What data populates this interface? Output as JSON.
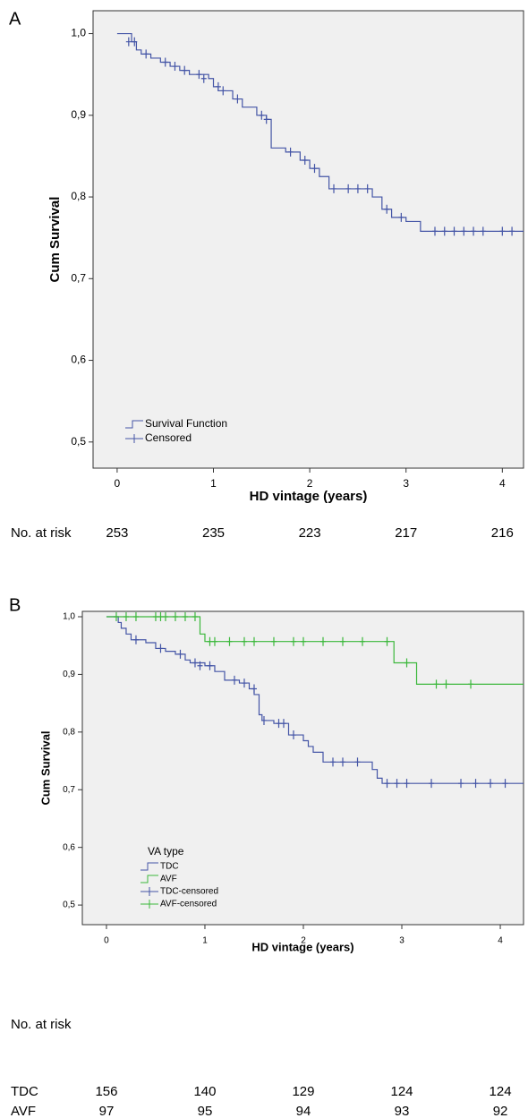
{
  "chart_data": [
    {
      "type": "survival",
      "panel_label": "A",
      "y_label": "Cum Survival",
      "x_label": "HD vintage (years)",
      "xlim": [
        -0.25,
        4.22
      ],
      "ylim": [
        0.468,
        1.028
      ],
      "xticks": [
        0,
        1,
        2,
        3,
        4
      ],
      "yticks": [
        {
          "value": 0.5,
          "label": "0,5"
        },
        {
          "value": 0.6,
          "label": "0,6"
        },
        {
          "value": 0.7,
          "label": "0,7"
        },
        {
          "value": 0.8,
          "label": "0,8"
        },
        {
          "value": 0.9,
          "label": "0,9"
        },
        {
          "value": 1.0,
          "label": "1,0"
        }
      ],
      "series": [
        {
          "name": "Survival Function",
          "color": "#4455a6",
          "x": [
            0,
            0.15,
            0.2,
            0.25,
            0.35,
            0.45,
            0.55,
            0.65,
            0.75,
            0.95,
            1.0,
            1.05,
            1.2,
            1.3,
            1.45,
            1.55,
            1.6,
            1.75,
            1.9,
            2.0,
            2.1,
            2.2,
            2.65,
            2.75,
            2.85,
            3.0,
            3.15
          ],
          "values": [
            1.0,
            0.99,
            0.98,
            0.975,
            0.97,
            0.965,
            0.96,
            0.955,
            0.95,
            0.945,
            0.935,
            0.93,
            0.92,
            0.91,
            0.9,
            0.895,
            0.86,
            0.855,
            0.845,
            0.835,
            0.825,
            0.81,
            0.8,
            0.785,
            0.775,
            0.77,
            0.758
          ]
        },
        {
          "name": "Censored",
          "color": "#4455a6",
          "marker": "plus",
          "x": [
            0.12,
            0.18,
            0.3,
            0.5,
            0.6,
            0.7,
            0.85,
            0.9,
            1.05,
            1.1,
            1.25,
            1.5,
            1.55,
            1.8,
            1.95,
            2.05,
            2.25,
            2.4,
            2.5,
            2.6,
            2.8,
            2.95,
            3.3,
            3.4,
            3.5,
            3.6,
            3.7,
            3.8,
            4.0,
            4.1
          ],
          "values": [
            0.99,
            0.99,
            0.975,
            0.965,
            0.96,
            0.955,
            0.95,
            0.945,
            0.935,
            0.93,
            0.92,
            0.9,
            0.895,
            0.855,
            0.845,
            0.835,
            0.81,
            0.81,
            0.81,
            0.81,
            0.785,
            0.775,
            0.758,
            0.758,
            0.758,
            0.758,
            0.758,
            0.758,
            0.758,
            0.758
          ]
        }
      ],
      "risk_table": {
        "label": "No. at risk",
        "rows": [
          {
            "values": [
              253,
              235,
              223,
              217,
              216
            ]
          }
        ]
      }
    },
    {
      "type": "survival",
      "panel_label": "B",
      "y_label": "Cum Survival",
      "x_label": "HD vintage (years)",
      "xlim": [
        -0.245,
        4.236
      ],
      "ylim": [
        0.466,
        1.0093
      ],
      "xticks": [
        0,
        1,
        2,
        3,
        4
      ],
      "yticks": [
        {
          "value": 0.5,
          "label": "0,5"
        },
        {
          "value": 0.6,
          "label": "0,6"
        },
        {
          "value": 0.7,
          "label": "0,7"
        },
        {
          "value": 0.8,
          "label": "0,8"
        },
        {
          "value": 0.9,
          "label": "0,9"
        },
        {
          "value": 1.0,
          "label": "1,0"
        }
      ],
      "legend_title": "VA type",
      "series": [
        {
          "name": "TDC",
          "color": "#4455a6",
          "x": [
            0,
            0.12,
            0.15,
            0.2,
            0.25,
            0.4,
            0.5,
            0.6,
            0.7,
            0.8,
            0.85,
            1.0,
            1.1,
            1.2,
            1.35,
            1.45,
            1.5,
            1.55,
            1.58,
            1.7,
            1.85,
            2.0,
            2.05,
            2.1,
            2.2,
            2.7,
            2.75,
            2.8
          ],
          "values": [
            1.0,
            0.99,
            0.98,
            0.97,
            0.96,
            0.955,
            0.945,
            0.94,
            0.935,
            0.925,
            0.92,
            0.915,
            0.905,
            0.89,
            0.885,
            0.875,
            0.865,
            0.83,
            0.82,
            0.815,
            0.795,
            0.785,
            0.775,
            0.765,
            0.748,
            0.735,
            0.72,
            0.711
          ]
        },
        {
          "name": "AVF",
          "color": "#3cb83c",
          "x": [
            0,
            0.95,
            1.0,
            2.92,
            3.15
          ],
          "values": [
            1.0,
            0.97,
            0.957,
            0.92,
            0.883
          ]
        },
        {
          "name": "TDC-censored",
          "color": "#4455a6",
          "marker": "plus",
          "x": [
            0.3,
            0.55,
            0.75,
            0.9,
            0.95,
            1.05,
            1.3,
            1.4,
            1.5,
            1.6,
            1.75,
            1.8,
            1.9,
            2.3,
            2.4,
            2.55,
            2.85,
            2.95,
            3.05,
            3.3,
            3.6,
            3.75,
            3.9,
            4.05
          ],
          "values": [
            0.96,
            0.945,
            0.935,
            0.92,
            0.915,
            0.915,
            0.89,
            0.885,
            0.875,
            0.82,
            0.815,
            0.815,
            0.795,
            0.748,
            0.748,
            0.748,
            0.711,
            0.711,
            0.711,
            0.711,
            0.711,
            0.711,
            0.711,
            0.711
          ]
        },
        {
          "name": "AVF-censored",
          "color": "#3cb83c",
          "marker": "plus",
          "x": [
            0.1,
            0.2,
            0.3,
            0.5,
            0.55,
            0.6,
            0.7,
            0.8,
            0.9,
            1.05,
            1.1,
            1.25,
            1.4,
            1.5,
            1.7,
            1.9,
            2.0,
            2.2,
            2.4,
            2.6,
            2.85,
            3.05,
            3.35,
            3.45,
            3.7
          ],
          "values": [
            1,
            1,
            1,
            1,
            1,
            1,
            1,
            1,
            1,
            0.957,
            0.957,
            0.957,
            0.957,
            0.957,
            0.957,
            0.957,
            0.957,
            0.957,
            0.957,
            0.957,
            0.957,
            0.92,
            0.883,
            0.883,
            0.883
          ]
        }
      ],
      "risk_table": {
        "label": "No. at risk",
        "rows": [
          {
            "name": "TDC",
            "values": [
              156,
              140,
              129,
              124,
              124
            ]
          },
          {
            "name": "AVF",
            "values": [
              97,
              95,
              94,
              93,
              92
            ]
          }
        ]
      }
    }
  ]
}
